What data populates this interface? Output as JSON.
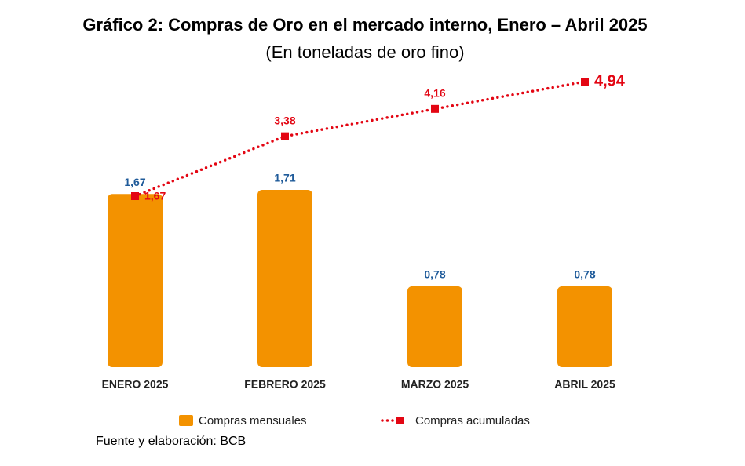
{
  "chart_data": {
    "type": "bar",
    "title": "Gráfico 2: Compras de Oro en el mercado interno, Enero – Abril 2025",
    "subtitle": "(En toneladas de oro fino)",
    "categories": [
      "ENERO 2025",
      "FEBRERO 2025",
      "MARZO 2025",
      "ABRIL 2025"
    ],
    "series": [
      {
        "name": "Compras mensuales",
        "type": "bar",
        "color": "#f39200",
        "values": [
          1.67,
          1.71,
          0.78,
          0.78
        ],
        "value_labels": [
          "1,67",
          "1,71",
          "0,78",
          "0,78"
        ]
      },
      {
        "name": "Compras acumuladas",
        "type": "line",
        "color": "#e30613",
        "values": [
          1.67,
          3.38,
          4.16,
          4.94
        ],
        "value_labels": [
          "1,67",
          "3,38",
          "4,16",
          "4,94"
        ]
      }
    ],
    "source": "Fuente y elaboración: BCB"
  }
}
